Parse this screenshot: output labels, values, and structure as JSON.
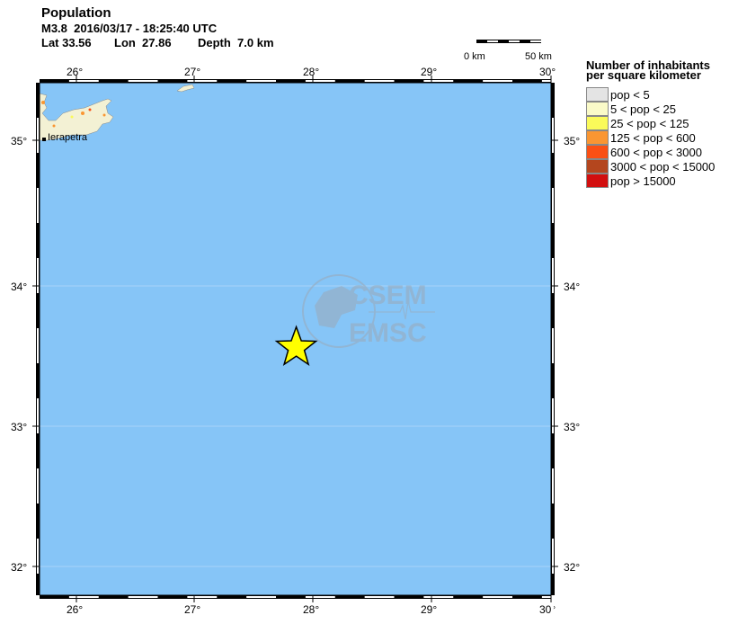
{
  "header": {
    "title": "Population",
    "line1": "M3.8  2016/03/17 - 18:25:40 UTC",
    "lat": "Lat 33.56",
    "lon": "Lon  27.86",
    "depth": "Depth  7.0 km"
  },
  "scale_bar": {
    "left": "0 km",
    "right": "50 km"
  },
  "axes": {
    "lon_ticks": [
      "26°",
      "27°",
      "28°",
      "29°",
      "30°"
    ],
    "lat_ticks": [
      "35°",
      "34°",
      "33°",
      "32°"
    ]
  },
  "map": {
    "ocean_color": "#86c5f7",
    "place_label": "Ierapetra",
    "epicenter": {
      "lat": 33.56,
      "lon": 27.86,
      "marker": "star-icon",
      "color": "#ffff00"
    },
    "watermark": [
      "CSEM",
      "EMSC"
    ]
  },
  "legend": {
    "title_line1": "Number of inhabitants",
    "title_line2": "per square kilometer",
    "items": [
      {
        "label": "pop < 5",
        "color": "#e4e4e4"
      },
      {
        "label": "5 < pop < 25",
        "color": "#fafac8"
      },
      {
        "label": "25 < pop < 125",
        "color": "#fafa5a"
      },
      {
        "label": "125 < pop < 600",
        "color": "#fa9632"
      },
      {
        "label": "600 < pop < 3000",
        "color": "#fa5014"
      },
      {
        "label": "3000 < pop < 15000",
        "color": "#b4461e"
      },
      {
        "label": "pop > 15000",
        "color": "#d20f0f"
      }
    ]
  }
}
